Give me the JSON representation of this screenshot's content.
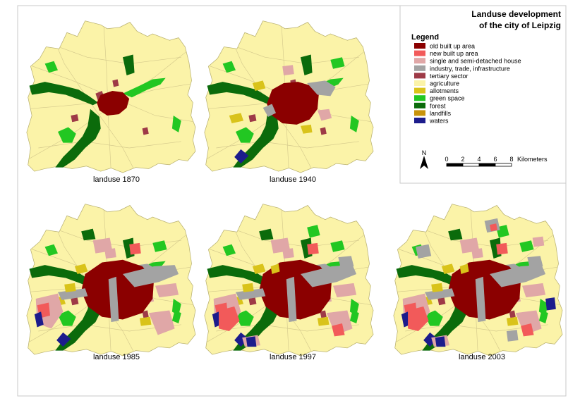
{
  "title_line1": "Landuse development",
  "title_line2": "of the city of Leipzig",
  "legend_title": "Legend",
  "legend": [
    {
      "label": "old built up area",
      "color": "#8b0000"
    },
    {
      "label": "new built up area",
      "color": "#f25a5a"
    },
    {
      "label": "single and semi-detached house",
      "color": "#e0a7a7"
    },
    {
      "label": "industry, trade, infrastructure",
      "color": "#a3a3a3"
    },
    {
      "label": "tertiary sector",
      "color": "#9e3a47"
    },
    {
      "label": "agriculture",
      "color": "#fbf3a8"
    },
    {
      "label": "allotments",
      "color": "#d9c31a"
    },
    {
      "label": "green space",
      "color": "#22c722"
    },
    {
      "label": "forest",
      "color": "#0b6b0b"
    },
    {
      "label": "landfills",
      "color": "#c8930a"
    },
    {
      "label": "waters",
      "color": "#1c1c8c"
    }
  ],
  "north_label": "N",
  "scale": {
    "ticks": [
      "0",
      "2",
      "4",
      "6",
      "8"
    ],
    "unit": "Kilometers"
  },
  "maps": [
    {
      "label": "landuse 1870",
      "urban_level": 0
    },
    {
      "label": "landuse 1940",
      "urban_level": 1
    },
    {
      "label": "landuse 1985",
      "urban_level": 2
    },
    {
      "label": "landuse 1997",
      "urban_level": 3
    },
    {
      "label": "landuse 2003",
      "urban_level": 4
    }
  ]
}
